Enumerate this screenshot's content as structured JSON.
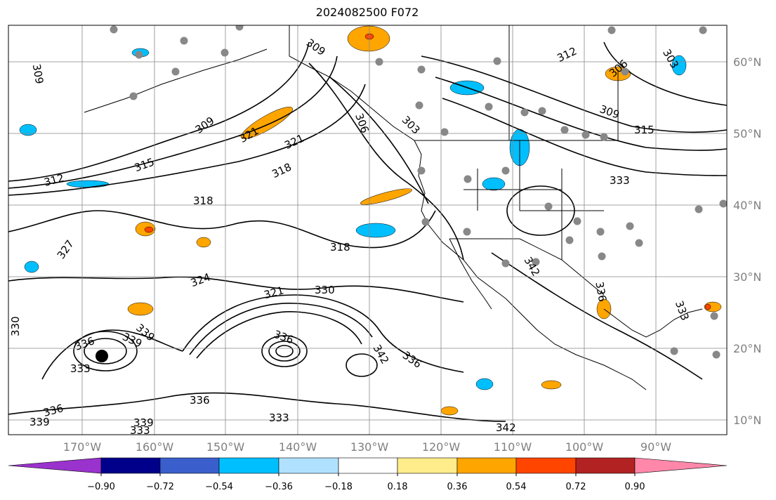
{
  "title": "2024082500 F072",
  "lon_labels": [
    "170°W",
    "160°W",
    "150°W",
    "140°W",
    "130°W",
    "120°W",
    "110°W",
    "100°W",
    "90°W"
  ],
  "lat_labels": [
    "60°N",
    "50°N",
    "40°N",
    "30°N",
    "20°N",
    "10°N"
  ],
  "colorbar": {
    "colors": [
      "#9a32cd",
      "#00008b",
      "#3a5fcd",
      "#00bfff",
      "#b0e2ff",
      "#ffffff",
      "#ffec8b",
      "#ffa500",
      "#ff4500",
      "#b22222",
      "#ff88aa"
    ],
    "tick_labels": [
      "−0.90",
      "−0.72",
      "−0.54",
      "−0.36",
      "−0.18",
      "0.18",
      "0.36",
      "0.54",
      "0.72",
      "0.90"
    ]
  },
  "contour_labels": [
    "309",
    "309",
    "306",
    "312",
    "306",
    "303",
    "309",
    "309",
    "303",
    "321",
    "321",
    "315",
    "312",
    "318",
    "318",
    "315",
    "327",
    "318",
    "324",
    "342",
    "333",
    "321",
    "330",
    "336",
    "339",
    "342",
    "336",
    "336",
    "330",
    "339",
    "333",
    "336",
    "333",
    "336",
    "333",
    "339",
    "339",
    "342",
    "336",
    "333"
  ]
}
